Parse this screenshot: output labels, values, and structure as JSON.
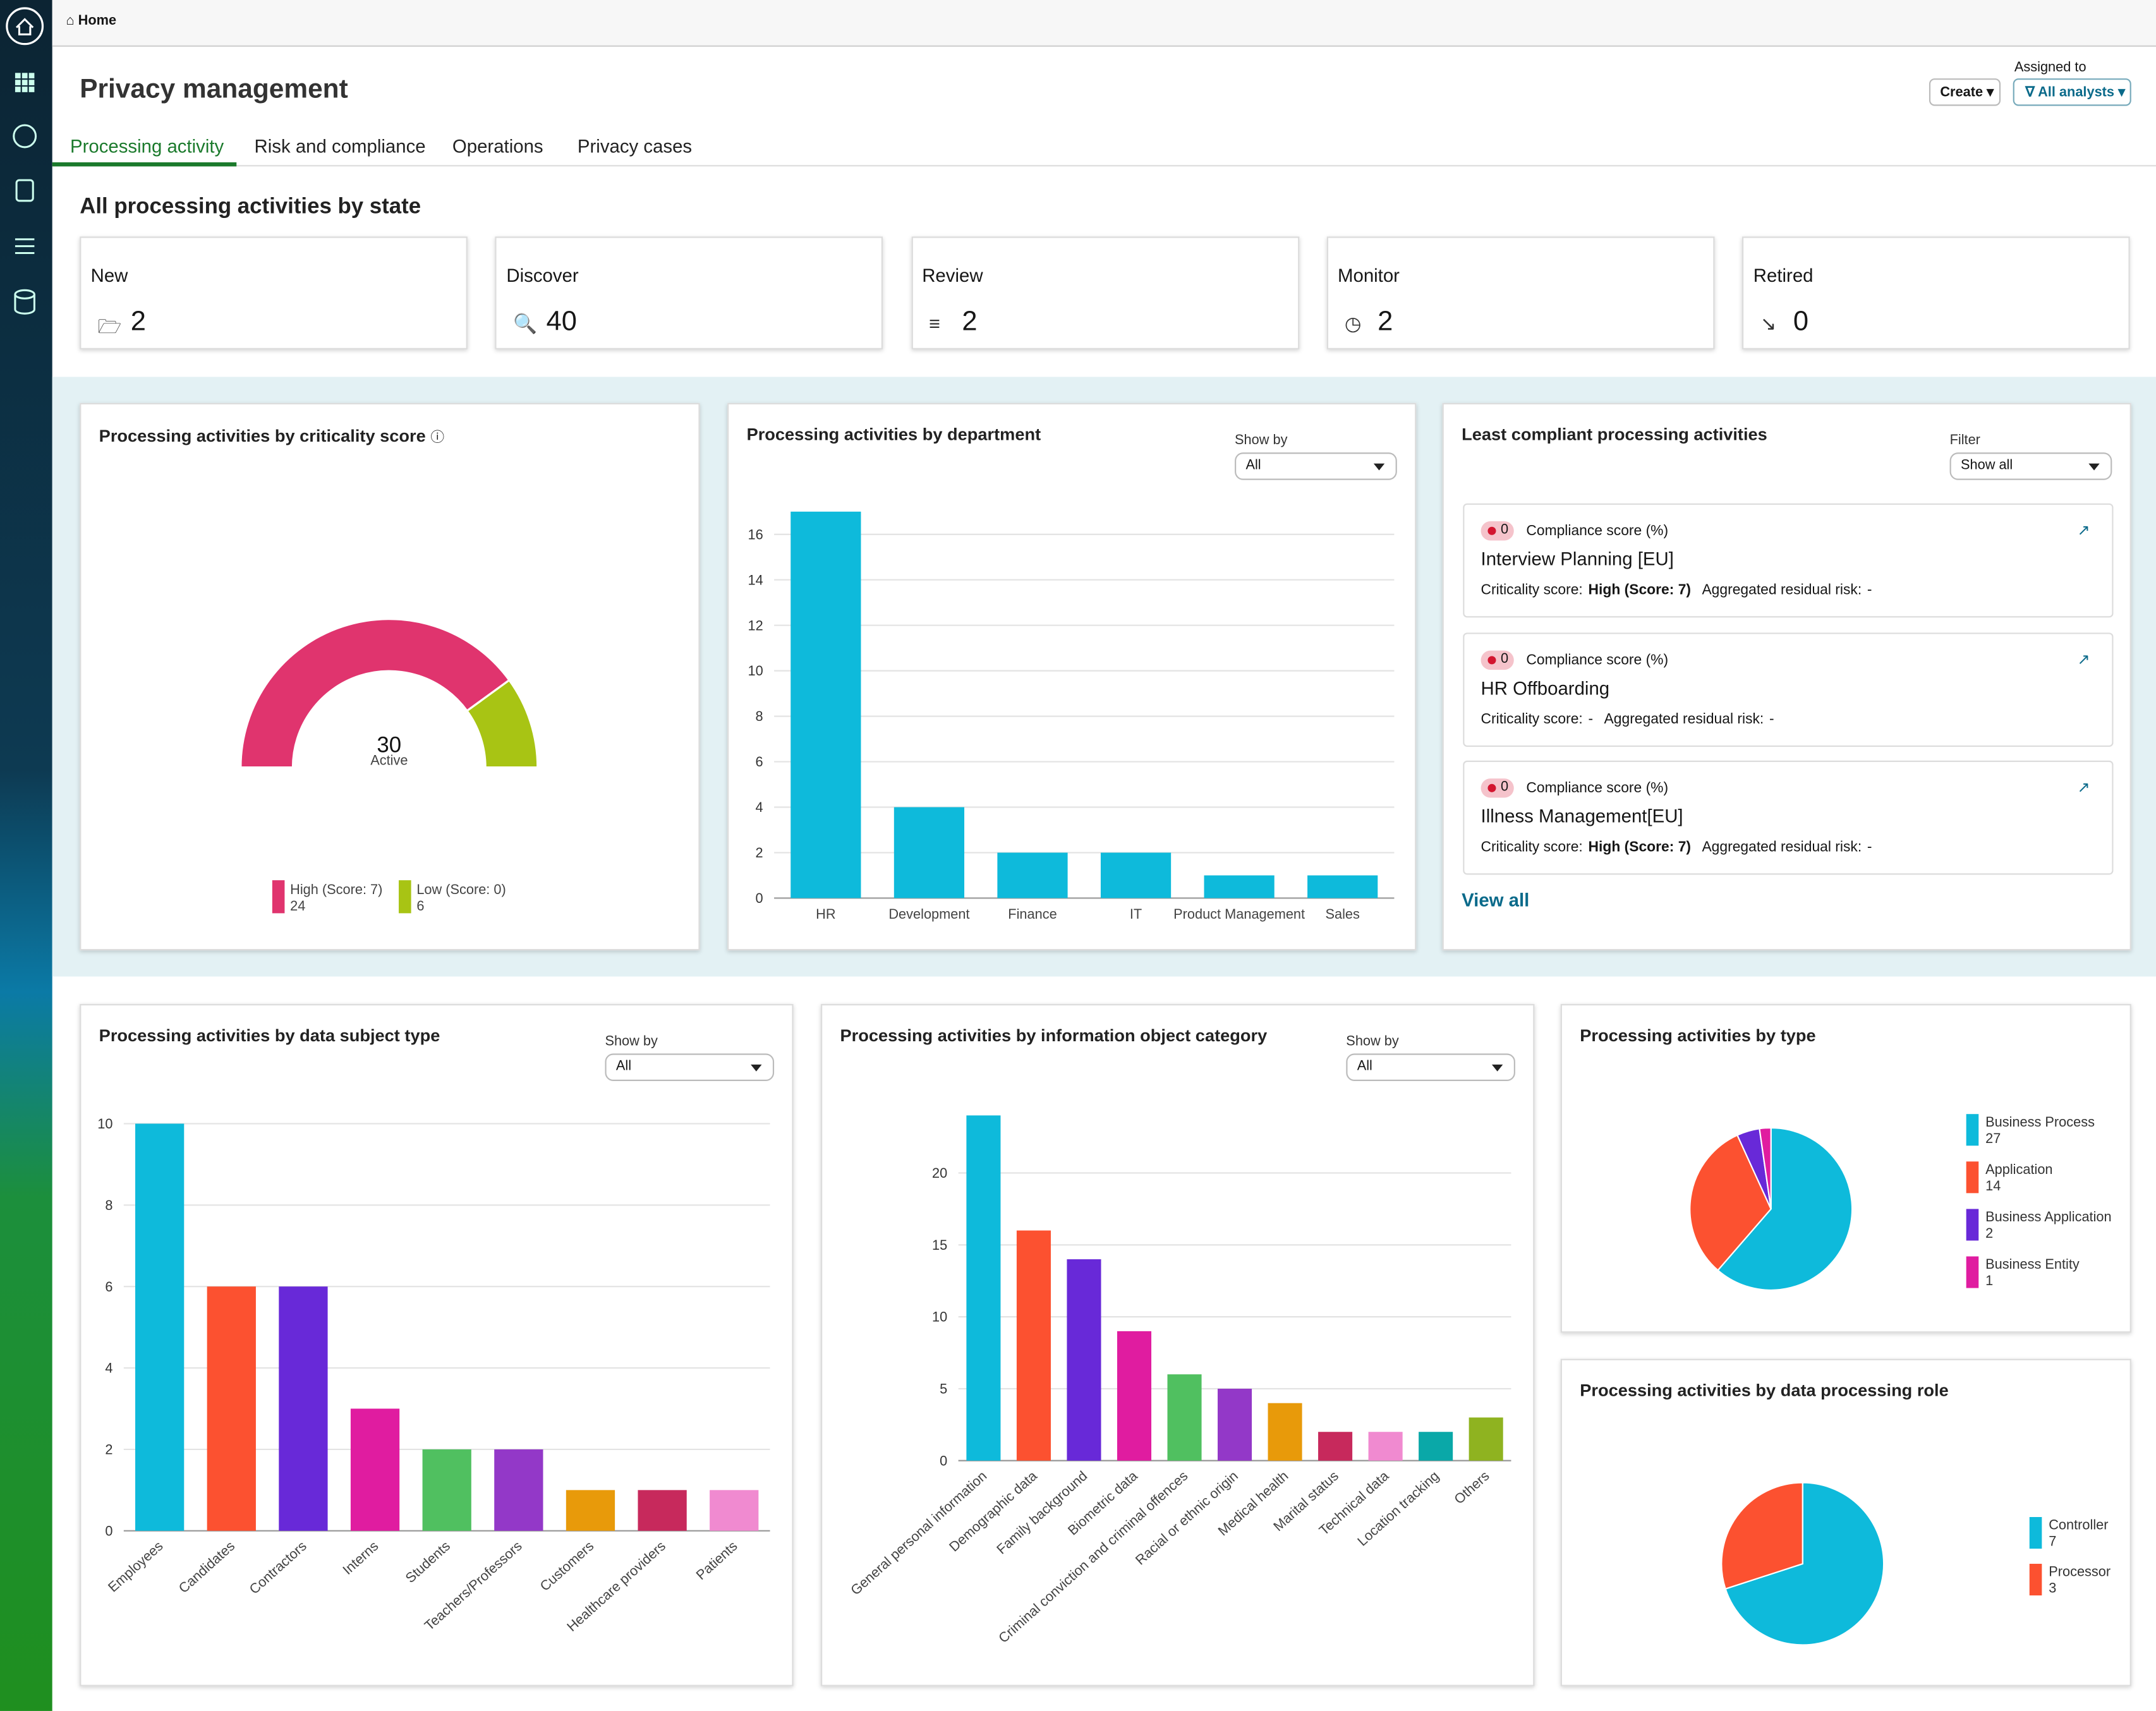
{
  "breadcrumb": "Home",
  "title": "Privacy management",
  "actions": {
    "create": "Create",
    "assigned_label": "Assigned to",
    "assigned_value": "All analysts"
  },
  "tabs": [
    "Processing activity",
    "Risk and compliance",
    "Operations",
    "Privacy cases"
  ],
  "state_section": {
    "title": "All processing activities by state",
    "cards": [
      {
        "label": "New",
        "value": 2
      },
      {
        "label": "Discover",
        "value": 40
      },
      {
        "label": "Review",
        "value": 2
      },
      {
        "label": "Monitor",
        "value": 2
      },
      {
        "label": "Retired",
        "value": 0
      }
    ]
  },
  "criticality": {
    "type": "gauge",
    "title": "Processing activities by criticality score",
    "total": 30,
    "total_label": "Active",
    "series": [
      {
        "name": "High (Score: 7)",
        "color": "#e0346e",
        "value": 24
      },
      {
        "name": "Low (Score: 0)",
        "color": "#a8c414",
        "value": 6
      }
    ]
  },
  "department": {
    "type": "bar",
    "title": "Processing activities by department",
    "show_by_label": "Show by",
    "show_by": "All",
    "categories": [
      "HR",
      "Development",
      "Finance",
      "IT",
      "Product Management",
      "Sales"
    ],
    "values": [
      17,
      4,
      2,
      2,
      1,
      1
    ],
    "color": "#0ebadb",
    "ylim": [
      0,
      17
    ],
    "yticks": [
      0,
      2,
      4,
      6,
      8,
      10,
      12,
      14,
      16
    ],
    "grid": true
  },
  "least_compliant": {
    "title": "Least compliant processing activities",
    "filter_label": "Filter",
    "filter": "Show all",
    "items": [
      {
        "score": 0,
        "score_label": "Compliance score (%)",
        "name": "Interview Planning [EU]",
        "criticality_label": "Criticality score:",
        "criticality": "High (Score: 7)",
        "risk_label": "Aggregated residual risk:",
        "risk": "-"
      },
      {
        "score": 0,
        "score_label": "Compliance score (%)",
        "name": "HR Offboarding",
        "criticality_label": "Criticality score:",
        "criticality": "-",
        "risk_label": "Aggregated residual risk:",
        "risk": "-"
      },
      {
        "score": 0,
        "score_label": "Compliance score (%)",
        "name": "Illness Management[EU]",
        "criticality_label": "Criticality score:",
        "criticality": "High (Score: 7)",
        "risk_label": "Aggregated residual risk:",
        "risk": "-"
      }
    ],
    "view_all": "View all"
  },
  "subject_type": {
    "type": "bar",
    "title": "Processing activities by data subject type",
    "show_by_label": "Show by",
    "show_by": "All",
    "categories": [
      "Employees",
      "Candidates",
      "Contractors",
      "Interns",
      "Students",
      "Teachers/Professors",
      "Customers",
      "Healthcare providers",
      "Patients"
    ],
    "values": [
      10,
      6,
      6,
      3,
      2,
      2,
      1,
      1,
      1
    ],
    "colors": [
      "#0ebadb",
      "#fc5130",
      "#6829d8",
      "#e01ca0",
      "#50c060",
      "#9338c8",
      "#e89a0a",
      "#c7295c",
      "#f08ad0"
    ],
    "ylim": [
      0,
      10
    ],
    "yticks": [
      0,
      2,
      4,
      6,
      8,
      10
    ],
    "grid": true
  },
  "info_category": {
    "type": "bar",
    "title": "Processing activities by information object category",
    "show_by_label": "Show by",
    "show_by": "All",
    "categories": [
      "General personal information",
      "Demographic data",
      "Family background",
      "Biometric data",
      "Criminal conviction and criminal offences",
      "Racial or ethnic origin",
      "Medical health",
      "Marital status",
      "Technical data",
      "Location tracking",
      "Others"
    ],
    "values": [
      24,
      16,
      14,
      9,
      6,
      5,
      4,
      2,
      2,
      2,
      3
    ],
    "colors": [
      "#0ebadb",
      "#fc5130",
      "#6829d8",
      "#e01ca0",
      "#50c060",
      "#9338c8",
      "#e89a0a",
      "#c7295c",
      "#f08ad0",
      "#0aa8a8",
      "#8fb320"
    ],
    "ylim": [
      0,
      24
    ],
    "yticks": [
      0,
      5,
      10,
      15,
      20
    ],
    "grid": true
  },
  "by_type": {
    "type": "pie",
    "title": "Processing activities by type",
    "categories": [
      "Business Process",
      "Application",
      "Business Application",
      "Business Entity"
    ],
    "values": [
      27,
      14,
      2,
      1
    ],
    "colors": [
      "#0ebadb",
      "#fc5130",
      "#6829d8",
      "#e01ca0"
    ]
  },
  "by_role": {
    "type": "pie",
    "title": "Processing activities by data processing role",
    "categories": [
      "Controller",
      "Processor"
    ],
    "values": [
      7,
      3
    ],
    "colors": [
      "#0ebadb",
      "#fc5130"
    ]
  }
}
